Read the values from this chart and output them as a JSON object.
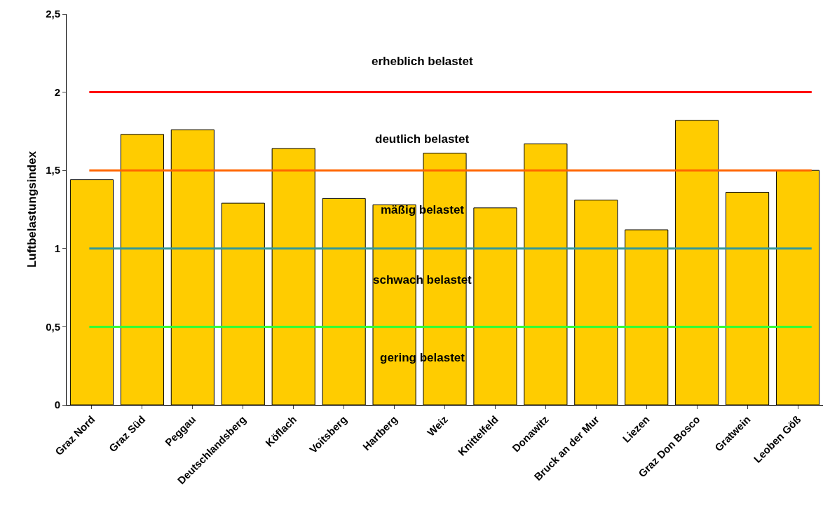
{
  "chart_data": {
    "type": "bar",
    "ylabel": "Luftbelastungsindex",
    "categories": [
      "Graz Nord",
      "Graz Süd",
      "Peggau",
      "Deutschlandsberg",
      "Köflach",
      "Voitsberg",
      "Hartberg",
      "Weiz",
      "Knittelfeld",
      "Donawitz",
      "Bruck an der Mur",
      "Liezen",
      "Graz Don Bosco",
      "Gratwein",
      "Leoben Göß"
    ],
    "values": [
      1.44,
      1.73,
      1.76,
      1.29,
      1.64,
      1.32,
      1.28,
      1.61,
      1.26,
      1.67,
      1.31,
      1.12,
      1.82,
      1.36,
      1.5
    ],
    "color": "#ffcc00",
    "ylim": [
      0,
      2.5
    ],
    "yticks": [
      0,
      {
        "value": 0.5,
        "label": "0,5"
      },
      1,
      {
        "value": 1.5,
        "label": "1,5"
      },
      2,
      {
        "value": 2.5,
        "label": "2,5"
      }
    ],
    "grid": false,
    "ref_lines": [
      {
        "axis": "y",
        "value": 2,
        "color": "#ff0000"
      },
      {
        "axis": "y",
        "value": 1.5,
        "color": "#ff6600"
      },
      {
        "axis": "y",
        "value": 1,
        "color": "#339999"
      },
      {
        "axis": "y",
        "value": 0.5,
        "color": "#33ff33"
      }
    ],
    "annotations": [
      "erheblich belastet",
      "deutlich belastet",
      "mäßig belastet",
      "schwach belastet",
      "gering belastet"
    ]
  }
}
